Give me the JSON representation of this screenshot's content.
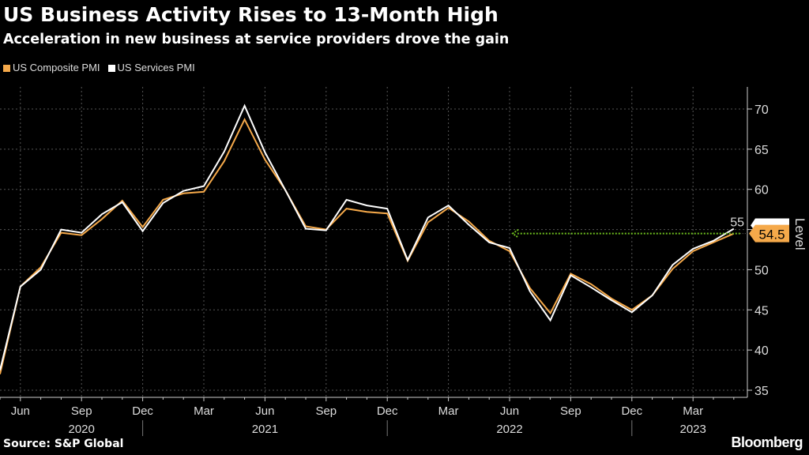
{
  "header": {
    "title": "US Business Activity Rises to 13-Month High",
    "subtitle": "Acceleration in new business at service providers drove the gain"
  },
  "footer": {
    "source": "Source: S&P Global",
    "brand": "Bloomberg"
  },
  "chart_data": {
    "type": "line",
    "title": "US Business Activity Rises to 13-Month High",
    "subtitle": "Acceleration in new business at service providers drove the gain",
    "xlabel": "",
    "ylabel": "Level",
    "ylim": [
      35,
      70
    ],
    "yticks": [
      35,
      40,
      45,
      50,
      55,
      60,
      65,
      70
    ],
    "grid": true,
    "legend_position": "top-left",
    "x": [
      "2020-05",
      "2020-06",
      "2020-07",
      "2020-08",
      "2020-09",
      "2020-10",
      "2020-11",
      "2020-12",
      "2021-01",
      "2021-02",
      "2021-03",
      "2021-04",
      "2021-05",
      "2021-06",
      "2021-07",
      "2021-08",
      "2021-09",
      "2021-10",
      "2021-11",
      "2021-12",
      "2022-01",
      "2022-02",
      "2022-03",
      "2022-04",
      "2022-05",
      "2022-06",
      "2022-07",
      "2022-08",
      "2022-09",
      "2022-10",
      "2022-11",
      "2022-12",
      "2023-01",
      "2023-02",
      "2023-03",
      "2023-04",
      "2023-05"
    ],
    "xtick_labels": [
      {
        "month_index": 1,
        "label": "Jun"
      },
      {
        "month_index": 4,
        "label": "Sep"
      },
      {
        "month_index": 7,
        "label": "Dec"
      },
      {
        "month_index": 10,
        "label": "Mar"
      },
      {
        "month_index": 13,
        "label": "Jun"
      },
      {
        "month_index": 16,
        "label": "Sep"
      },
      {
        "month_index": 19,
        "label": "Dec"
      },
      {
        "month_index": 22,
        "label": "Mar"
      },
      {
        "month_index": 25,
        "label": "Jun"
      },
      {
        "month_index": 28,
        "label": "Sep"
      },
      {
        "month_index": 31,
        "label": "Dec"
      },
      {
        "month_index": 34,
        "label": "Mar"
      }
    ],
    "year_labels": [
      {
        "month_index": 4,
        "label": "2020"
      },
      {
        "month_index": 13,
        "label": "2021"
      },
      {
        "month_index": 25,
        "label": "2022"
      },
      {
        "month_index": 34,
        "label": "2023"
      }
    ],
    "year_separators": [
      7,
      19,
      31
    ],
    "series": [
      {
        "name": "US Composite PMI",
        "color": "#f5a94a",
        "values": [
          37.0,
          47.9,
          50.3,
          54.6,
          54.3,
          56.3,
          58.6,
          55.3,
          58.7,
          59.5,
          59.7,
          63.5,
          68.7,
          63.7,
          59.9,
          55.4,
          55.0,
          57.6,
          57.2,
          57.0,
          51.1,
          55.9,
          57.7,
          56.0,
          53.6,
          52.3,
          47.7,
          44.6,
          49.5,
          48.2,
          46.4,
          45.0,
          46.8,
          50.1,
          52.3,
          53.4,
          54.5
        ]
      },
      {
        "name": "US Services PMI",
        "color": "#ffffff",
        "values": [
          37.5,
          47.9,
          50.0,
          55.0,
          54.6,
          56.9,
          58.4,
          54.8,
          58.3,
          59.8,
          60.4,
          64.7,
          70.4,
          64.6,
          59.9,
          55.1,
          54.9,
          58.7,
          58.0,
          57.6,
          51.2,
          56.5,
          58.0,
          55.6,
          53.4,
          52.7,
          47.3,
          43.7,
          49.3,
          47.8,
          46.2,
          44.7,
          46.8,
          50.6,
          52.6,
          53.6,
          55.1
        ]
      }
    ],
    "annotations": [
      {
        "type": "arrow",
        "from_month_index": 36,
        "to_month_index": 25,
        "value": 54.5,
        "color": "#6fbf1f"
      }
    ],
    "last_value_label": "54.5"
  }
}
